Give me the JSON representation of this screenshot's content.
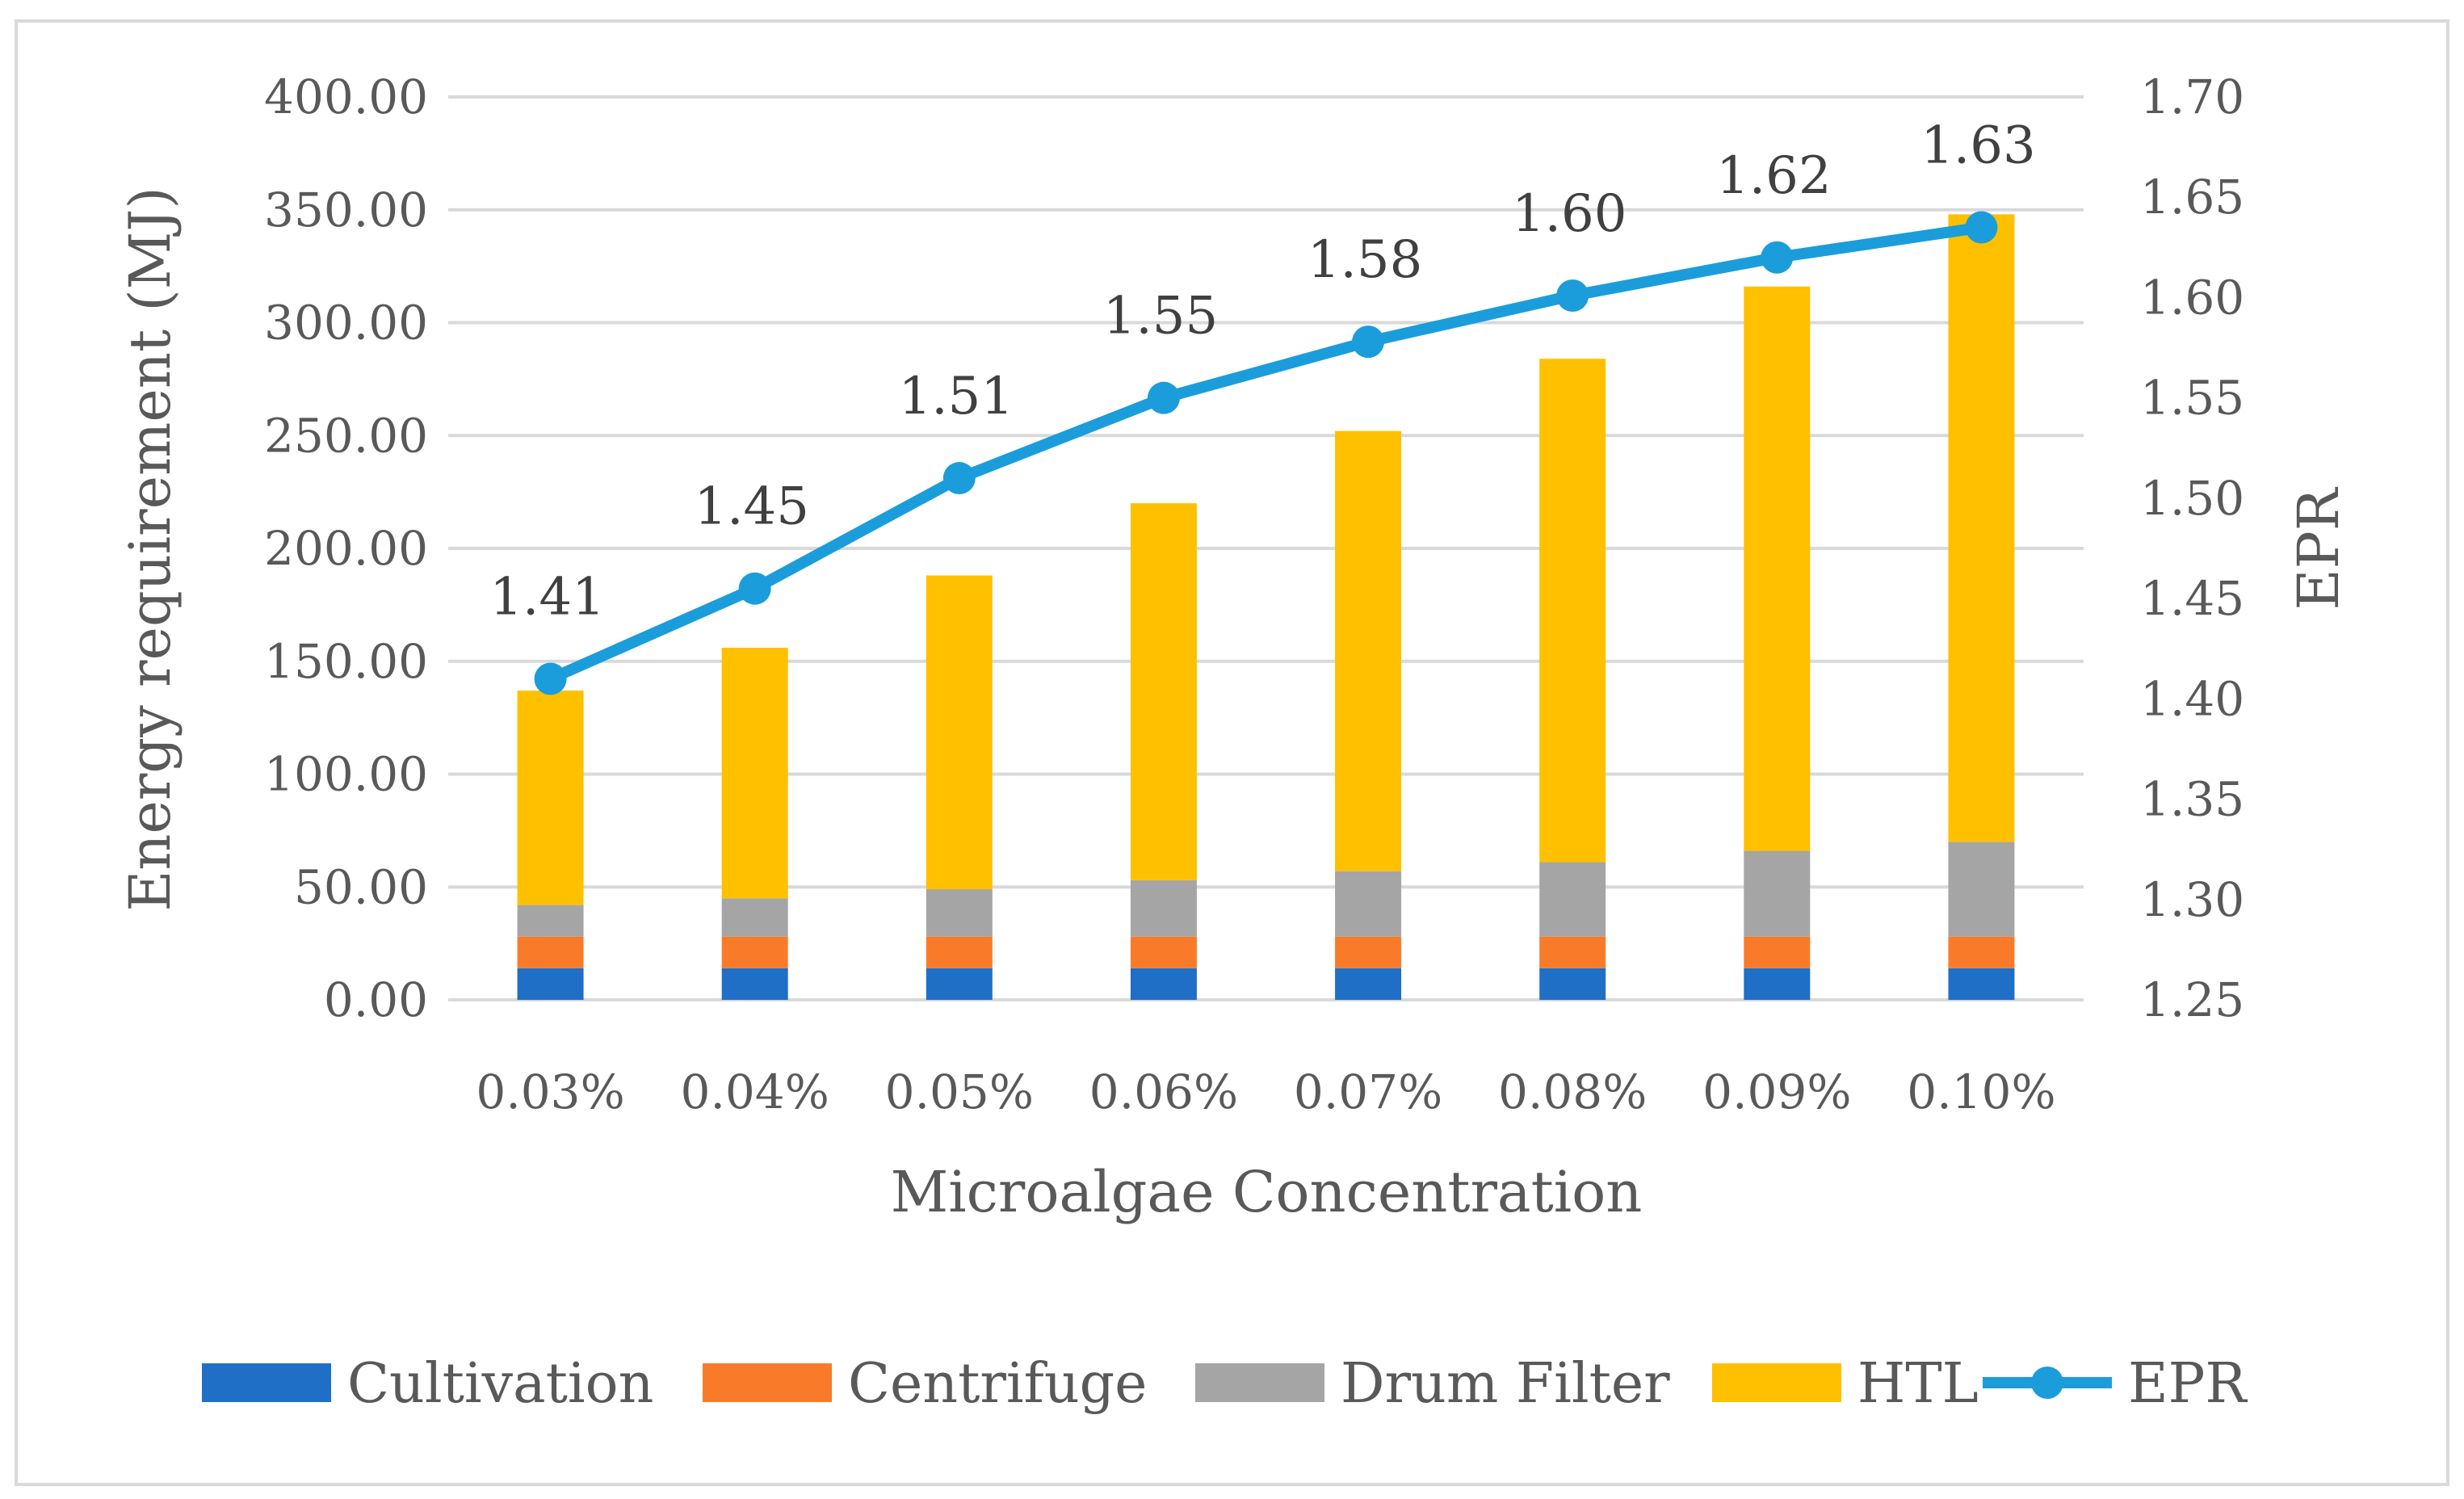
{
  "chart_data": {
    "type": "bar",
    "stacked": true,
    "categories": [
      "0.03%",
      "0.04%",
      "0.05%",
      "0.06%",
      "0.07%",
      "0.08%",
      "0.09%",
      "0.10%"
    ],
    "series": [
      {
        "name": "Cultivation",
        "type": "bar",
        "axis": "left",
        "color": "#1F6FC6",
        "values": [
          14,
          14,
          14,
          14,
          14,
          14,
          14,
          14
        ]
      },
      {
        "name": "Centrifuge",
        "type": "bar",
        "axis": "left",
        "color": "#F97B2A",
        "values": [
          14,
          14,
          14,
          14,
          14,
          14,
          14,
          14
        ]
      },
      {
        "name": "Drum Filter",
        "type": "bar",
        "axis": "left",
        "color": "#A5A5A5",
        "values": [
          14,
          17,
          21,
          25,
          29,
          33,
          38,
          42
        ]
      },
      {
        "name": "HTL",
        "type": "bar",
        "axis": "left",
        "color": "#FFC000",
        "values": [
          95,
          111,
          139,
          167,
          195,
          223,
          250,
          278
        ]
      },
      {
        "name": "EPR",
        "type": "line",
        "axis": "right",
        "color": "#1B9DDB",
        "values": [
          1.41,
          1.455,
          1.51,
          1.55,
          1.578,
          1.601,
          1.62,
          1.635
        ],
        "labels": [
          "1.41",
          "1.45",
          "1.51",
          "1.55",
          "1.58",
          "1.60",
          "1.62",
          "1.63"
        ]
      }
    ],
    "xlabel": "Microalgae Concentration",
    "ylabel": "Energy requirement (MJ)",
    "y2label": "EPR",
    "ylim": [
      0,
      400
    ],
    "y2lim": [
      1.25,
      1.7
    ],
    "yticks": [
      "0.00",
      "50.00",
      "100.00",
      "150.00",
      "200.00",
      "250.00",
      "300.00",
      "350.00",
      "400.00"
    ],
    "y2ticks": [
      "1.25",
      "1.30",
      "1.35",
      "1.40",
      "1.45",
      "1.50",
      "1.55",
      "1.60",
      "1.65",
      "1.70"
    ],
    "grid": true,
    "legend_position": "bottom",
    "gridline_color": "#D9D9D9",
    "frame_color": "#D9D9D9"
  }
}
